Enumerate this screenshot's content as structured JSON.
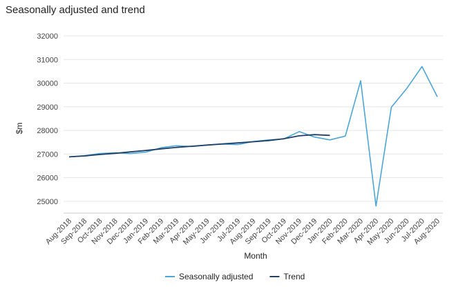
{
  "chart_data": {
    "type": "line",
    "title": "Seasonally adjusted and trend",
    "xlabel": "Month",
    "ylabel": "$m",
    "ylim": [
      24500,
      32000
    ],
    "yticks": [
      25000,
      26000,
      27000,
      28000,
      29000,
      30000,
      31000,
      32000
    ],
    "categories": [
      "Aug-2018",
      "Sep-2018",
      "Oct-2018",
      "Nov-2018",
      "Dec-2018",
      "Jan-2019",
      "Feb-2019",
      "Mar-2019",
      "Apr-2019",
      "May-2019",
      "Jun-2019",
      "Jul-2019",
      "Aug-2019",
      "Sep-2019",
      "Oct-2019",
      "Nov-2019",
      "Dec-2019",
      "Jan-2020",
      "Feb-2020",
      "Mar-2020",
      "Apr-2020",
      "May-2020",
      "Jun-2020",
      "Jul-2020",
      "Aug-2020"
    ],
    "series": [
      {
        "name": "Seasonally adjusted",
        "color": "#4aa6d6",
        "values": [
          26880,
          26930,
          27020,
          27050,
          27020,
          27080,
          27270,
          27350,
          27320,
          27380,
          27420,
          27400,
          27530,
          27600,
          27640,
          27950,
          27720,
          27600,
          27760,
          30100,
          24800,
          28980,
          29770,
          30700,
          29420
        ]
      },
      {
        "name": "Trend",
        "color": "#1f3f66",
        "values": [
          26880,
          26920,
          26980,
          27030,
          27090,
          27150,
          27220,
          27280,
          27330,
          27380,
          27430,
          27470,
          27520,
          27570,
          27650,
          27770,
          27820,
          27790,
          null,
          null,
          null,
          null,
          null,
          null,
          null
        ]
      }
    ],
    "legend_position": "bottom"
  }
}
